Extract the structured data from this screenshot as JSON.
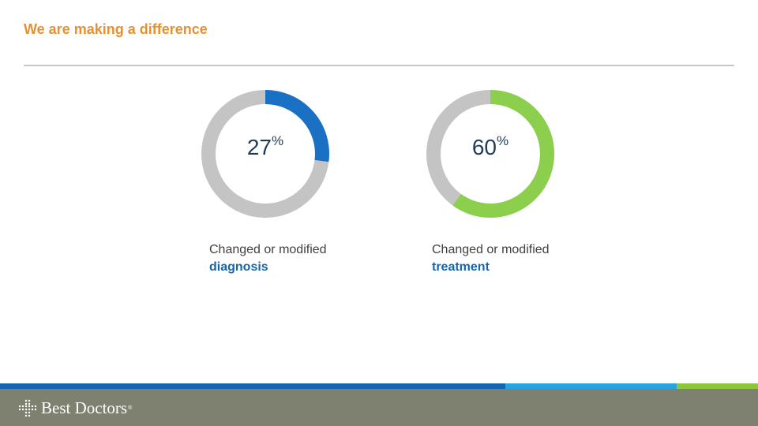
{
  "header": {
    "title": "We are making a difference"
  },
  "colors": {
    "title": "#e8902e",
    "track": "#c4c4c4",
    "rule": "#c8c8c8",
    "number": "#1f3b5a",
    "emphasis_text": "#1565b0",
    "footer": "#7f8170",
    "band": [
      "#1565b0",
      "#29a3dd",
      "#8cc63f"
    ]
  },
  "chart_data": [
    {
      "type": "pie",
      "variant": "donut",
      "value": 27,
      "max": 100,
      "unit": "%",
      "value_label": "27",
      "color": "#1a70c2",
      "caption": "Changed or modified",
      "caption_emphasis": "diagnosis"
    },
    {
      "type": "pie",
      "variant": "donut",
      "value": 60,
      "max": 100,
      "unit": "%",
      "value_label": "60",
      "color": "#8ccf4d",
      "caption": "Changed or modified",
      "caption_emphasis": "treatment"
    }
  ],
  "footer": {
    "logo_text": "Best Doctors",
    "logo_mark": "medical-cross-dots-icon",
    "registered_mark": "®"
  }
}
